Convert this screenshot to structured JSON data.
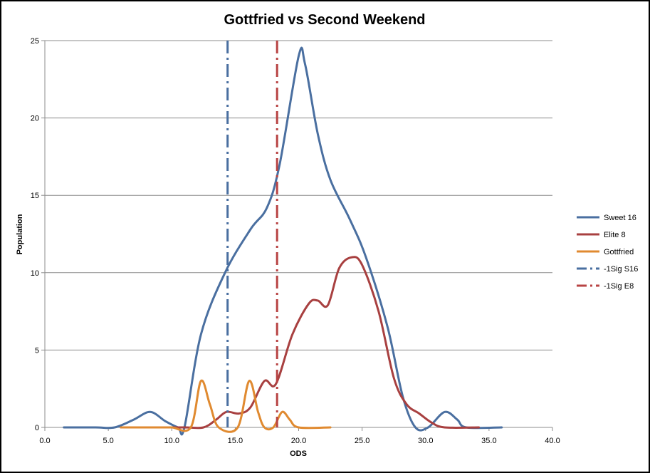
{
  "chart_data": {
    "type": "line",
    "title": "Gottfried vs Second Weekend",
    "xlabel": "ODS",
    "ylabel": "Population",
    "xlim": [
      0,
      40
    ],
    "ylim": [
      0,
      25
    ],
    "x_ticks": [
      "0.0",
      "5.0",
      "10.0",
      "15.0",
      "20.0",
      "25.0",
      "30.0",
      "35.0",
      "40.0"
    ],
    "y_ticks": [
      "0",
      "5",
      "10",
      "15",
      "20",
      "25"
    ],
    "grid": "horizontal",
    "legend_position": "right",
    "series": [
      {
        "name": "Sweet 16",
        "color": "#4a6fa0",
        "style": "solid",
        "points": [
          [
            1.5,
            0
          ],
          [
            4,
            0
          ],
          [
            5.5,
            0
          ],
          [
            7,
            0.5
          ],
          [
            8.3,
            1
          ],
          [
            9.5,
            0.4
          ],
          [
            10.5,
            0
          ],
          [
            11,
            0
          ],
          [
            12.3,
            6
          ],
          [
            14.2,
            10
          ],
          [
            16.2,
            12.8
          ],
          [
            17.5,
            14.2
          ],
          [
            18.5,
            17
          ],
          [
            20,
            24
          ],
          [
            20.5,
            23.5
          ],
          [
            21.5,
            19
          ],
          [
            22.5,
            16
          ],
          [
            24,
            13.5
          ],
          [
            25.3,
            11
          ],
          [
            27,
            6.5
          ],
          [
            28.2,
            2
          ],
          [
            29.2,
            0
          ],
          [
            30.2,
            0
          ],
          [
            31.5,
            1
          ],
          [
            32.5,
            0.5
          ],
          [
            33.2,
            0
          ],
          [
            36,
            0
          ]
        ]
      },
      {
        "name": "Elite 8",
        "color": "#a84040",
        "style": "solid",
        "points": [
          [
            6,
            0
          ],
          [
            8,
            0
          ],
          [
            11,
            0
          ],
          [
            12.5,
            0
          ],
          [
            13.5,
            0.5
          ],
          [
            14.3,
            1
          ],
          [
            15.3,
            0.9
          ],
          [
            16.2,
            1.3
          ],
          [
            17.3,
            3
          ],
          [
            18.2,
            2.8
          ],
          [
            19.5,
            6
          ],
          [
            20.8,
            8
          ],
          [
            21.5,
            8.2
          ],
          [
            22.3,
            7.9
          ],
          [
            23.2,
            10.3
          ],
          [
            24.2,
            11
          ],
          [
            25,
            10.5
          ],
          [
            26.3,
            7.5
          ],
          [
            27.5,
            3.2
          ],
          [
            28.5,
            1.5
          ],
          [
            29.5,
            0.9
          ],
          [
            30.5,
            0.3
          ],
          [
            31.5,
            0
          ],
          [
            34.2,
            0
          ]
        ]
      },
      {
        "name": "Gottfried",
        "color": "#e08a30",
        "style": "solid",
        "points": [
          [
            6,
            0
          ],
          [
            9,
            0
          ],
          [
            10,
            0
          ],
          [
            11.5,
            0
          ],
          [
            12.3,
            3
          ],
          [
            13,
            1.5
          ],
          [
            13.7,
            0
          ],
          [
            15.2,
            0
          ],
          [
            16.1,
            3
          ],
          [
            16.8,
            1
          ],
          [
            17.3,
            0
          ],
          [
            18,
            0
          ],
          [
            18.7,
            1
          ],
          [
            19.3,
            0.5
          ],
          [
            20,
            0
          ],
          [
            22.5,
            0
          ]
        ]
      },
      {
        "name": "-1Sig S16",
        "color": "#4a6fa0",
        "style": "dashdot",
        "x": 14.4
      },
      {
        "name": "-1Sig E8",
        "color": "#b84444",
        "style": "dashdot",
        "x": 18.3
      }
    ]
  }
}
